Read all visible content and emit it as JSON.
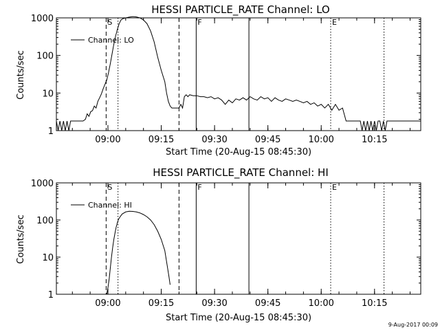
{
  "timestamp": "9-Aug-2017 00:09",
  "chart_data": [
    {
      "type": "line",
      "title": "HESSI PARTICLE_RATE Channel: LO",
      "xlabel": "Start Time (20-Aug-15 08:45:30)",
      "ylabel": "Counts/sec",
      "yscale": "log",
      "ylim": [
        1,
        1000
      ],
      "xlim": [
        "08:45:30",
        "10:28:00"
      ],
      "x_ticks": [
        "09:00",
        "09:15",
        "09:30",
        "09:45",
        "10:00",
        "10:15"
      ],
      "y_ticks": [
        "1",
        "10",
        "100",
        "1000"
      ],
      "legend": {
        "position": "top-left",
        "entries": [
          "Channel: LO"
        ]
      },
      "vlines": [
        {
          "time": "08:59:30",
          "style": "dashed",
          "label": "S"
        },
        {
          "time": "09:02:50",
          "style": "dotted",
          "label": ""
        },
        {
          "time": "09:20:00",
          "style": "dashed",
          "label": ""
        },
        {
          "time": "09:24:50",
          "style": "solid",
          "label": "F"
        },
        {
          "time": "09:39:40",
          "style": "solid",
          "label": ""
        },
        {
          "time": "10:02:40",
          "style": "dotted",
          "label": "E"
        },
        {
          "time": "10:17:40",
          "style": "dotted",
          "label": ""
        }
      ],
      "series": [
        {
          "name": "Channel: LO",
          "points": [
            [
              "08:45:30",
              1.8
            ],
            [
              "08:46:00",
              1.0
            ],
            [
              "08:46:30",
              1.8
            ],
            [
              "08:47:00",
              1.0
            ],
            [
              "08:47:30",
              1.8
            ],
            [
              "08:48:00",
              1.0
            ],
            [
              "08:48:30",
              1.8
            ],
            [
              "08:49:00",
              1.0
            ],
            [
              "08:49:30",
              1.8
            ],
            [
              "08:50:00",
              1.8
            ],
            [
              "08:51:00",
              1.8
            ],
            [
              "08:52:00",
              1.8
            ],
            [
              "08:53:00",
              1.8
            ],
            [
              "08:53:40",
              2.0
            ],
            [
              "08:54:10",
              2.8
            ],
            [
              "08:54:40",
              2.4
            ],
            [
              "08:55:10",
              3.2
            ],
            [
              "08:55:40",
              3.4
            ],
            [
              "08:56:10",
              4.5
            ],
            [
              "08:56:40",
              4.0
            ],
            [
              "08:57:10",
              6.0
            ],
            [
              "08:57:40",
              7.5
            ],
            [
              "08:58:10",
              9.5
            ],
            [
              "08:58:40",
              13
            ],
            [
              "08:59:10",
              17
            ],
            [
              "08:59:40",
              22
            ],
            [
              "09:00:10",
              35
            ],
            [
              "09:00:40",
              60
            ],
            [
              "09:01:10",
              110
            ],
            [
              "09:01:40",
              200
            ],
            [
              "09:02:10",
              330
            ],
            [
              "09:02:40",
              500
            ],
            [
              "09:03:10",
              700
            ],
            [
              "09:03:40",
              880
            ],
            [
              "09:04:10",
              950
            ],
            [
              "09:05:00",
              1000
            ],
            [
              "09:06:00",
              1050
            ],
            [
              "09:07:00",
              1080
            ],
            [
              "09:08:00",
              1060
            ],
            [
              "09:09:00",
              1000
            ],
            [
              "09:10:00",
              880
            ],
            [
              "09:11:00",
              700
            ],
            [
              "09:12:00",
              450
            ],
            [
              "09:13:00",
              230
            ],
            [
              "09:14:00",
              90
            ],
            [
              "09:15:00",
              40
            ],
            [
              "09:16:00",
              20
            ],
            [
              "09:16:30",
              10
            ],
            [
              "09:17:00",
              6
            ],
            [
              "09:17:30",
              4.5
            ],
            [
              "09:18:00",
              4.0
            ],
            [
              "09:19:00",
              4.0
            ],
            [
              "09:20:00",
              4.0
            ],
            [
              "09:20:30",
              5.0
            ],
            [
              "09:21:00",
              4.0
            ],
            [
              "09:21:30",
              8.0
            ],
            [
              "09:22:00",
              9.0
            ],
            [
              "09:22:30",
              8.0
            ],
            [
              "09:23:00",
              9.0
            ],
            [
              "09:24:00",
              8.5
            ],
            [
              "09:25:00",
              8.5
            ],
            [
              "09:26:00",
              8.0
            ],
            [
              "09:27:00",
              8.0
            ],
            [
              "09:28:00",
              7.5
            ],
            [
              "09:29:00",
              8.0
            ],
            [
              "09:30:00",
              7.0
            ],
            [
              "09:31:00",
              7.5
            ],
            [
              "09:32:00",
              6.5
            ],
            [
              "09:33:00",
              5.0
            ],
            [
              "09:34:00",
              6.5
            ],
            [
              "09:35:00",
              5.5
            ],
            [
              "09:36:00",
              7.0
            ],
            [
              "09:37:00",
              6.5
            ],
            [
              "09:38:00",
              7.5
            ],
            [
              "09:39:00",
              6.5
            ],
            [
              "09:40:00",
              8.0
            ],
            [
              "09:41:00",
              7.0
            ],
            [
              "09:42:00",
              6.5
            ],
            [
              "09:43:00",
              8.0
            ],
            [
              "09:44:00",
              7.0
            ],
            [
              "09:45:00",
              7.5
            ],
            [
              "09:46:00",
              6.0
            ],
            [
              "09:47:00",
              7.5
            ],
            [
              "09:48:00",
              6.5
            ],
            [
              "09:49:00",
              6.0
            ],
            [
              "09:50:00",
              7.0
            ],
            [
              "09:51:00",
              6.5
            ],
            [
              "09:52:00",
              6.0
            ],
            [
              "09:53:00",
              6.5
            ],
            [
              "09:54:00",
              6.0
            ],
            [
              "09:55:00",
              5.5
            ],
            [
              "09:56:00",
              6.0
            ],
            [
              "09:57:00",
              5.0
            ],
            [
              "09:58:00",
              5.5
            ],
            [
              "09:59:00",
              4.5
            ],
            [
              "10:00:00",
              5.0
            ],
            [
              "10:01:00",
              4.0
            ],
            [
              "10:02:00",
              5.0
            ],
            [
              "10:03:00",
              3.5
            ],
            [
              "10:04:00",
              5.0
            ],
            [
              "10:05:00",
              3.5
            ],
            [
              "10:06:00",
              4.0
            ],
            [
              "10:07:00",
              1.8
            ],
            [
              "10:08:00",
              1.8
            ],
            [
              "10:09:00",
              1.8
            ],
            [
              "10:10:00",
              1.8
            ],
            [
              "10:11:00",
              1.8
            ],
            [
              "10:11:30",
              1.0
            ],
            [
              "10:12:00",
              1.8
            ],
            [
              "10:12:30",
              1.0
            ],
            [
              "10:13:00",
              1.8
            ],
            [
              "10:13:30",
              1.0
            ],
            [
              "10:14:00",
              1.8
            ],
            [
              "10:14:30",
              1.0
            ],
            [
              "10:15:00",
              1.8
            ],
            [
              "10:15:30",
              1.0
            ],
            [
              "10:16:00",
              1.8
            ],
            [
              "10:16:30",
              1.8
            ],
            [
              "10:17:00",
              1.0
            ],
            [
              "10:17:30",
              1.8
            ],
            [
              "10:18:00",
              1.0
            ],
            [
              "10:18:30",
              1.8
            ],
            [
              "10:19:00",
              1.8
            ],
            [
              "10:20:00",
              1.8
            ],
            [
              "10:21:00",
              1.8
            ],
            [
              "10:22:00",
              1.8
            ],
            [
              "10:23:00",
              1.8
            ],
            [
              "10:24:00",
              1.8
            ],
            [
              "10:25:00",
              1.8
            ],
            [
              "10:26:00",
              1.8
            ],
            [
              "10:27:00",
              1.8
            ],
            [
              "10:28:00",
              1.8
            ]
          ]
        }
      ]
    },
    {
      "type": "line",
      "title": "HESSI PARTICLE_RATE Channel: HI",
      "xlabel": "Start Time (20-Aug-15 08:45:30)",
      "ylabel": "Counts/sec",
      "yscale": "log",
      "ylim": [
        1,
        1000
      ],
      "xlim": [
        "08:45:30",
        "10:28:00"
      ],
      "x_ticks": [
        "09:00",
        "09:15",
        "09:30",
        "09:45",
        "10:00",
        "10:15"
      ],
      "y_ticks": [
        "1",
        "10",
        "100",
        "1000"
      ],
      "legend": {
        "position": "top-left",
        "entries": [
          "Channel: HI"
        ]
      },
      "vlines": [
        {
          "time": "08:59:30",
          "style": "dashed",
          "label": "S"
        },
        {
          "time": "09:02:50",
          "style": "dotted",
          "label": ""
        },
        {
          "time": "09:20:00",
          "style": "dashed",
          "label": ""
        },
        {
          "time": "09:24:50",
          "style": "solid",
          "label": "F"
        },
        {
          "time": "09:39:40",
          "style": "solid",
          "label": ""
        },
        {
          "time": "10:02:40",
          "style": "dotted",
          "label": "E"
        },
        {
          "time": "10:17:40",
          "style": "dotted",
          "label": ""
        }
      ],
      "series": [
        {
          "name": "Channel: HI",
          "points": [
            [
              "08:59:40",
              1.0
            ],
            [
              "09:00:00",
              1.5
            ],
            [
              "09:00:20",
              2.5
            ],
            [
              "09:00:40",
              5
            ],
            [
              "09:01:00",
              10
            ],
            [
              "09:01:20",
              18
            ],
            [
              "09:01:40",
              30
            ],
            [
              "09:02:00",
              45
            ],
            [
              "09:02:20",
              65
            ],
            [
              "09:02:40",
              85
            ],
            [
              "09:03:00",
              105
            ],
            [
              "09:03:30",
              125
            ],
            [
              "09:04:00",
              145
            ],
            [
              "09:05:00",
              165
            ],
            [
              "09:06:00",
              172
            ],
            [
              "09:07:00",
              170
            ],
            [
              "09:08:00",
              165
            ],
            [
              "09:09:00",
              155
            ],
            [
              "09:10:00",
              140
            ],
            [
              "09:11:00",
              122
            ],
            [
              "09:12:00",
              100
            ],
            [
              "09:13:00",
              75
            ],
            [
              "09:14:00",
              50
            ],
            [
              "09:15:00",
              30
            ],
            [
              "09:16:00",
              15
            ],
            [
              "09:16:40",
              6
            ],
            [
              "09:17:10",
              3
            ],
            [
              "09:17:30",
              1.8
            ]
          ]
        }
      ]
    }
  ]
}
